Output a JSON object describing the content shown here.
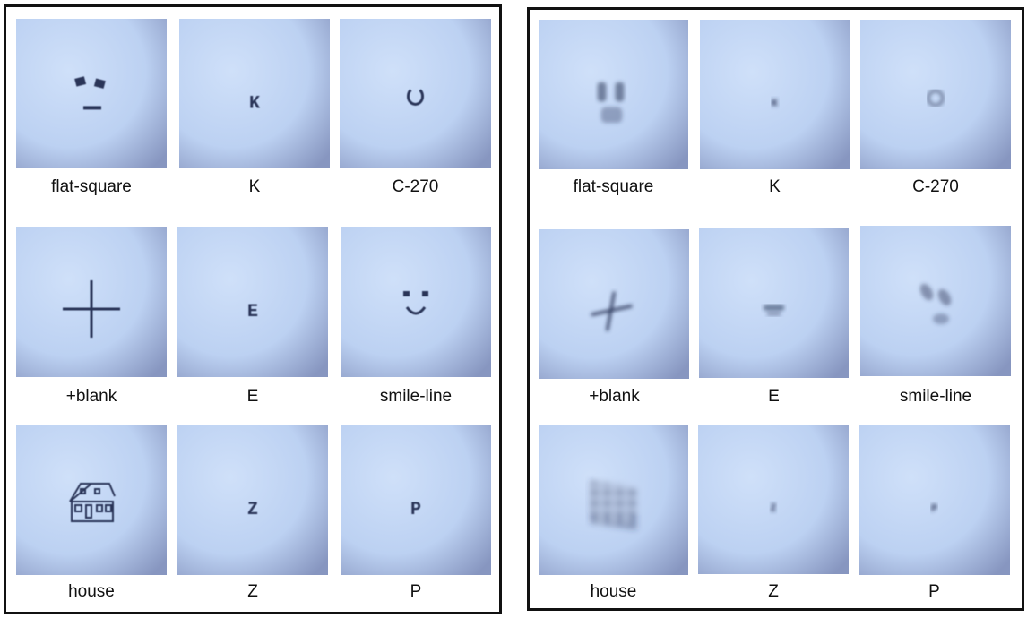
{
  "panels": [
    {
      "name": "left",
      "captions": [
        "flat-square",
        "K",
        "C-270",
        "+blank",
        "E",
        "smile-line",
        "house",
        "Z",
        "P"
      ]
    },
    {
      "name": "right",
      "captions": [
        "flat-square",
        "K",
        "C-270",
        "+blank",
        "E",
        "smile-line",
        "house",
        "Z",
        "P"
      ]
    }
  ],
  "tile_glyphs": {
    "K": "K",
    "E": "E",
    "Z": "Z",
    "P": "P"
  },
  "colors": {
    "tile_light": "#c9dbf6",
    "tile_mid": "#b8cdf0",
    "tile_dark": "#8f9fc6",
    "ink": "#2a3658",
    "frame": "#111111"
  },
  "icons": [
    "flat-square-pattern",
    "letter-K",
    "C-ring",
    "plus-cross",
    "letter-E",
    "smile-face",
    "house-icon",
    "letter-Z",
    "letter-P"
  ]
}
